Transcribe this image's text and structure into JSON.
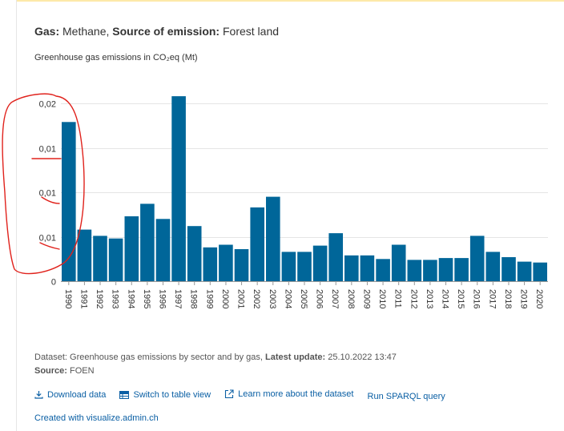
{
  "header": {
    "gas_label": "Gas:",
    "gas_value": "Methane,",
    "source_label": "Source of emission:",
    "source_value": "Forest land"
  },
  "chart_data": {
    "type": "bar",
    "title": "",
    "ylabel": "Greenhouse gas emissions in CO₂eq (Mt)",
    "xlabel": "",
    "categories": [
      "1990",
      "1991",
      "1992",
      "1993",
      "1994",
      "1995",
      "1996",
      "1997",
      "1998",
      "1999",
      "2000",
      "2001",
      "2002",
      "2003",
      "2004",
      "2005",
      "2006",
      "2007",
      "2008",
      "2009",
      "2010",
      "2011",
      "2012",
      "2013",
      "2014",
      "2015",
      "2016",
      "2017",
      "2018",
      "2019",
      "2020"
    ],
    "values": [
      0.0179,
      0.0058,
      0.0051,
      0.0048,
      0.0073,
      0.0087,
      0.007,
      0.0208,
      0.0062,
      0.0038,
      0.0041,
      0.0036,
      0.0083,
      0.0095,
      0.0033,
      0.0033,
      0.004,
      0.0054,
      0.0029,
      0.0029,
      0.0025,
      0.0041,
      0.0024,
      0.0024,
      0.0026,
      0.0026,
      0.0051,
      0.0033,
      0.0027,
      0.0022,
      0.0021
    ],
    "yticks": [
      "0,02",
      "0,01",
      "0,01",
      "0,01",
      "0"
    ],
    "ytick_values": [
      0.02,
      0.015,
      0.01,
      0.005,
      0
    ],
    "ylim": [
      0,
      0.02
    ],
    "grid": true,
    "bar_color": "#006699"
  },
  "footer": {
    "dataset_label": "Dataset:",
    "dataset_value": "Greenhouse gas emissions by sector and by gas,",
    "update_label": "Latest update:",
    "update_value": "25.10.2022 13:47",
    "source_label": "Source:",
    "source_value": "FOEN"
  },
  "links": {
    "download": "Download data",
    "table": "Switch to table view",
    "learn": "Learn more about the dataset",
    "sparql": "Run SPARQL query"
  },
  "created_with": "Created with visualize.admin.ch",
  "accent_color": "#0a5fa4"
}
